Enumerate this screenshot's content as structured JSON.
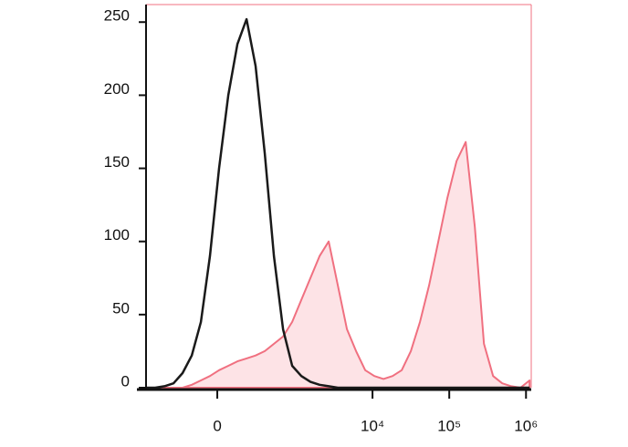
{
  "chart_data": {
    "type": "histogram",
    "x": [
      -794,
      -597,
      -443,
      -328,
      -236,
      -160,
      -97,
      -42,
      10,
      64,
      122,
      189,
      270,
      372,
      502,
      671,
      889,
      1174,
      1549,
      2039,
      2685,
      3530,
      4644,
      6109,
      8037,
      10564,
      13908,
      18278,
      24035,
      31616,
      41591,
      54701,
      71953,
      94639,
      124488,
      163742,
      215384,
      283195,
      372400,
      490010,
      644480,
      847780,
      1115110
    ],
    "series": [
      {
        "color": "#f07080",
        "fill": "#fde3e6",
        "values": [
          0,
          0,
          0,
          0,
          0,
          2,
          5,
          8,
          12,
          15,
          18,
          20,
          22,
          25,
          30,
          35,
          45,
          60,
          75,
          90,
          100,
          70,
          40,
          25,
          12,
          8,
          6,
          8,
          12,
          25,
          45,
          70,
          100,
          130,
          155,
          168,
          110,
          30,
          8,
          3,
          1,
          0,
          5
        ]
      },
      {
        "color": "#1a1a1a",
        "values": [
          0,
          0,
          1,
          3,
          10,
          22,
          45,
          90,
          150,
          200,
          235,
          252,
          220,
          160,
          90,
          40,
          15,
          8,
          4,
          2,
          1,
          0,
          0,
          0,
          0,
          0,
          0,
          0,
          0,
          0,
          0,
          0,
          0,
          0,
          0,
          0,
          0,
          0,
          0,
          0,
          0,
          0,
          0
        ]
      }
    ],
    "xscale": "asinh",
    "xlim": [
      -794,
      1170000
    ],
    "xticks": [
      0,
      {
        "value": 10000,
        "label": "10⁴"
      },
      {
        "value": 100000,
        "label": "10⁵"
      },
      {
        "value": 1000000,
        "label": "10⁶"
      }
    ],
    "ylim": [
      0,
      262
    ],
    "yticks": [
      0,
      50,
      100,
      150,
      200,
      250
    ]
  }
}
